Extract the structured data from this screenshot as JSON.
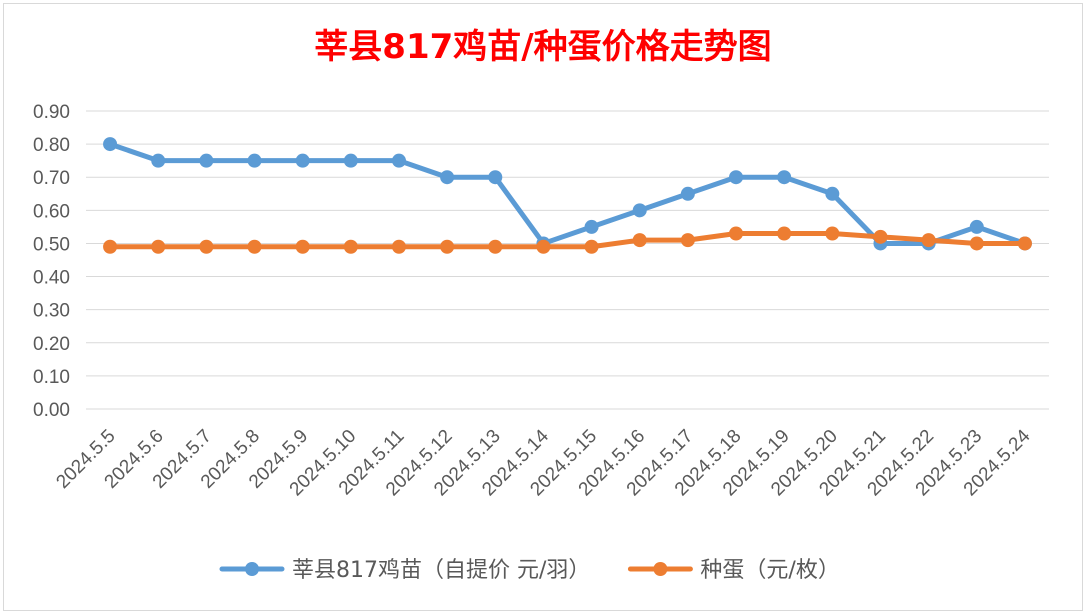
{
  "chart_data": {
    "type": "line",
    "title": "莘县817鸡苗/种蛋价格走势图",
    "xlabel": "",
    "ylabel": "",
    "ylim": [
      0,
      0.9
    ],
    "yticks": [
      "0.00",
      "0.10",
      "0.20",
      "0.30",
      "0.40",
      "0.50",
      "0.60",
      "0.70",
      "0.80",
      "0.90"
    ],
    "grid": true,
    "legend_position": "bottom",
    "categories": [
      "2024.5.5",
      "2024.5.6",
      "2024.5.7",
      "2024.5.8",
      "2024.5.9",
      "2024.5.10",
      "2024.5.11",
      "2024.5.12",
      "2024.5.13",
      "2024.5.14",
      "2024.5.15",
      "2024.5.16",
      "2024.5.17",
      "2024.5.18",
      "2024.5.19",
      "2024.5.20",
      "2024.5.21",
      "2024.5.22",
      "2024.5.23",
      "2024.5.24"
    ],
    "series": [
      {
        "name": "莘县817鸡苗（自提价 元/羽）",
        "color": "#5b9bd5",
        "values": [
          0.8,
          0.75,
          0.75,
          0.75,
          0.75,
          0.75,
          0.75,
          0.7,
          0.7,
          0.5,
          0.55,
          0.6,
          0.65,
          0.7,
          0.7,
          0.65,
          0.5,
          0.5,
          0.55,
          0.5
        ]
      },
      {
        "name": "种蛋（元/枚）",
        "color": "#ed7d31",
        "values": [
          0.49,
          0.49,
          0.49,
          0.49,
          0.49,
          0.49,
          0.49,
          0.49,
          0.49,
          0.49,
          0.49,
          0.51,
          0.51,
          0.53,
          0.53,
          0.53,
          0.52,
          0.51,
          0.5,
          0.5
        ]
      }
    ],
    "title_color": "#ff0000"
  }
}
